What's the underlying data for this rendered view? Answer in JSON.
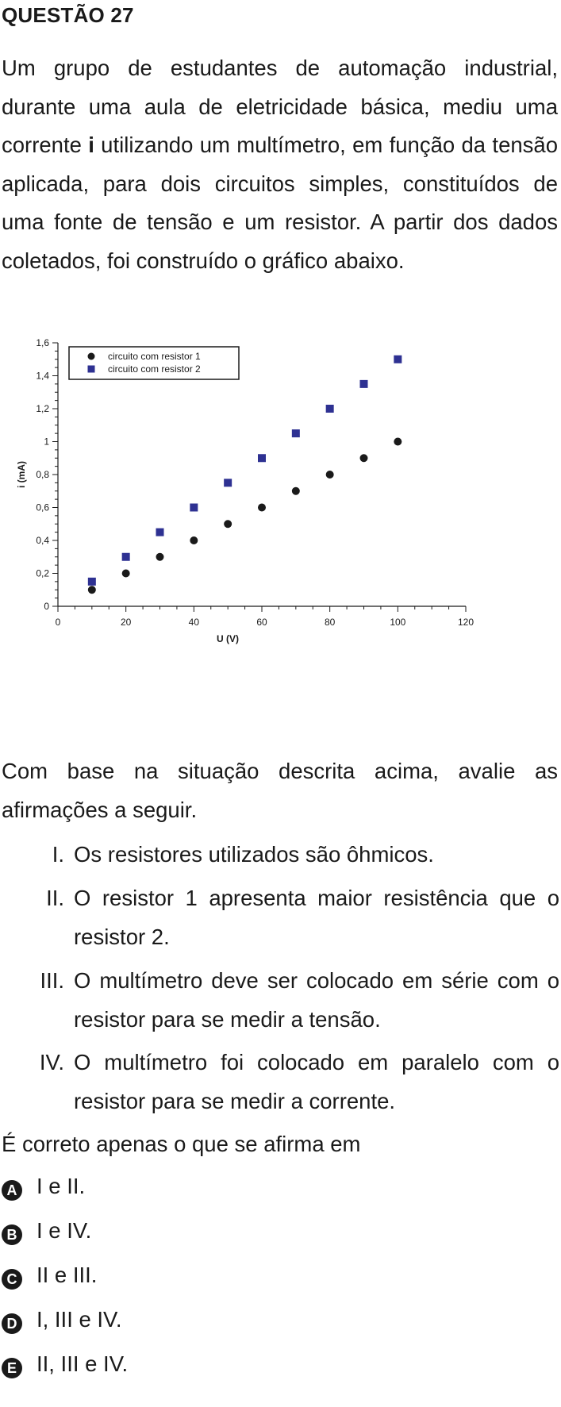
{
  "question": {
    "title": "QUESTÃO 27",
    "intro_before": "Um grupo de estudantes de automação industrial, durante uma aula de eletricidade básica, mediu uma corrente ",
    "intro_bold": "i",
    "intro_after": " utilizando um multímetro, em função da tensão aplicada, para dois circuitos simples, constituídos de uma fonte de tensão e um resistor. A partir dos dados coletados, foi construído o gráfico abaixo.",
    "lead": "Com base na situação descrita acima, avalie as afirmações a seguir.",
    "statements": [
      {
        "num": "I.",
        "text": "Os resistores utilizados são ôhmicos."
      },
      {
        "num": "II.",
        "text": "O resistor 1 apresenta maior resistência que o resistor 2."
      },
      {
        "num": "III.",
        "text": "O multímetro deve ser colocado em série com o resistor para se medir a tensão."
      },
      {
        "num": "IV.",
        "text": "O multímetro foi colocado em paralelo com o resistor para se medir a corrente."
      }
    ],
    "prompt": "É correto apenas o que se afirma em",
    "options": [
      {
        "letter": "A",
        "text": "I e II."
      },
      {
        "letter": "B",
        "text": "I e IV."
      },
      {
        "letter": "C",
        "text": "II e III."
      },
      {
        "letter": "D",
        "text": "I, III e IV."
      },
      {
        "letter": "E",
        "text": "II, III e IV."
      }
    ]
  },
  "chart_data": {
    "type": "scatter",
    "xlabel": "U (V)",
    "ylabel": "i (mA)",
    "xlim": [
      0,
      120
    ],
    "ylim": [
      0,
      1.6
    ],
    "x_ticks": [
      "0",
      "20",
      "40",
      "60",
      "80",
      "100",
      "120"
    ],
    "y_ticks": [
      "0",
      "0,2",
      "0,4",
      "0,6",
      "0,8",
      "1",
      "1,2",
      "1,4",
      "1,6"
    ],
    "grid": false,
    "legend_position": "top-left",
    "series": [
      {
        "name": "circuito com resistor 1",
        "marker": "circle",
        "color": "#1a1a1a",
        "x": [
          10,
          20,
          30,
          40,
          50,
          60,
          70,
          80,
          90,
          100
        ],
        "y": [
          0.1,
          0.2,
          0.3,
          0.4,
          0.5,
          0.6,
          0.7,
          0.8,
          0.9,
          1.0
        ]
      },
      {
        "name": "circuito com resistor 2",
        "marker": "square",
        "color": "#2e3192",
        "x": [
          10,
          20,
          30,
          40,
          50,
          60,
          70,
          80,
          90,
          100
        ],
        "y": [
          0.15,
          0.3,
          0.45,
          0.6,
          0.75,
          0.9,
          1.05,
          1.2,
          1.35,
          1.5
        ]
      }
    ]
  }
}
